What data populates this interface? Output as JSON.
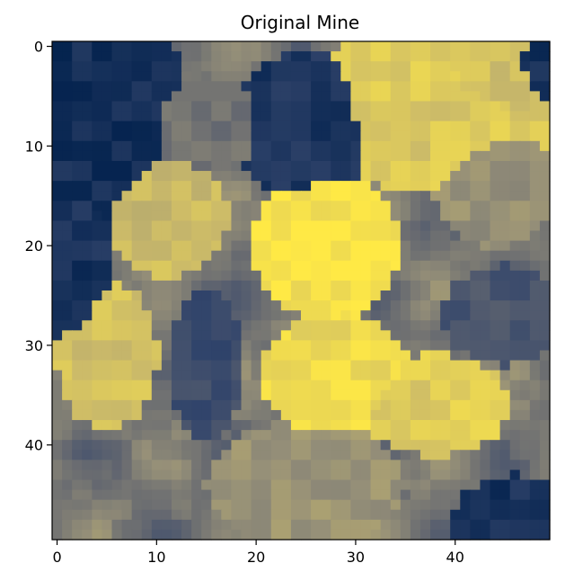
{
  "chart_data": {
    "type": "heatmap",
    "title": "Original Mine",
    "xlabel": "",
    "ylabel": "",
    "colormap": "cividis",
    "colormap_stops": [
      "#00204c",
      "#31446b",
      "#666970",
      "#958f78",
      "#cbba69",
      "#ffe945"
    ],
    "grid": false,
    "shape": [
      50,
      50
    ],
    "xlim": [
      -0.5,
      49.5
    ],
    "ylim": [
      49.5,
      -0.5
    ],
    "x_ticks": [
      0,
      10,
      20,
      30,
      40
    ],
    "y_ticks": [
      0,
      10,
      20,
      30,
      40
    ],
    "value_range": [
      0,
      1
    ],
    "regions": [
      {
        "name": "ore-body-upper-right",
        "cx": 38,
        "cy": 6,
        "rx": 10,
        "ry": 7,
        "value": 0.86
      },
      {
        "name": "ore-body-upper-right-2",
        "cx": 43,
        "cy": 3,
        "rx": 6,
        "ry": 5,
        "value": 0.83
      },
      {
        "name": "ore-body-center",
        "cx": 27,
        "cy": 20,
        "rx": 6,
        "ry": 6,
        "value": 0.97
      },
      {
        "name": "ore-body-center-lower",
        "cx": 28,
        "cy": 33,
        "rx": 6,
        "ry": 5,
        "value": 0.93
      },
      {
        "name": "ore-body-lower-right",
        "cx": 38,
        "cy": 36,
        "rx": 6,
        "ry": 4,
        "value": 0.88
      },
      {
        "name": "ore-body-left",
        "cx": 5,
        "cy": 31,
        "rx": 4,
        "ry": 6,
        "value": 0.82
      },
      {
        "name": "ore-body-upper-left",
        "cx": 11,
        "cy": 17,
        "rx": 5,
        "ry": 5,
        "value": 0.8
      },
      {
        "name": "waste-top-left",
        "cx": 4,
        "cy": 6,
        "rx": 7,
        "ry": 10,
        "value": 0.08
      },
      {
        "name": "waste-top-center",
        "cx": 25,
        "cy": 8,
        "rx": 6,
        "ry": 6,
        "value": 0.12
      },
      {
        "name": "waste-left",
        "cx": 2,
        "cy": 22,
        "rx": 3,
        "ry": 7,
        "value": 0.1
      },
      {
        "name": "waste-bottom-right",
        "cx": 46,
        "cy": 48,
        "rx": 5,
        "ry": 4,
        "value": 0.1
      },
      {
        "name": "waste-right",
        "cx": 45,
        "cy": 27,
        "rx": 5,
        "ry": 4,
        "value": 0.3
      },
      {
        "name": "waste-center-left",
        "cx": 15,
        "cy": 32,
        "rx": 3,
        "ry": 6,
        "value": 0.25
      },
      {
        "name": "waste-top-right-corner",
        "cx": 49,
        "cy": 2,
        "rx": 3,
        "ry": 3,
        "value": 0.08
      },
      {
        "name": "mid-grade-lower-center",
        "cx": 25,
        "cy": 44,
        "rx": 8,
        "ry": 5,
        "value": 0.62
      },
      {
        "name": "mid-grade-right",
        "cx": 44,
        "cy": 14,
        "rx": 5,
        "ry": 5,
        "value": 0.6
      },
      {
        "name": "mid-grade-center-left",
        "cx": 15,
        "cy": 8,
        "rx": 5,
        "ry": 4,
        "value": 0.45
      }
    ]
  }
}
